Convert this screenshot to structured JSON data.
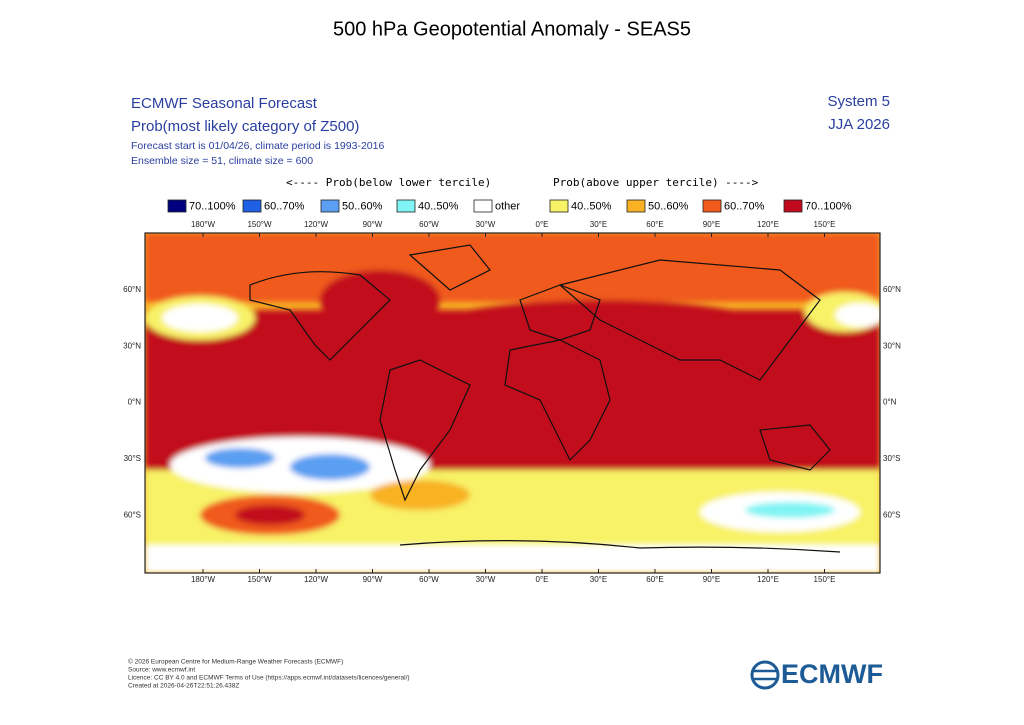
{
  "title": "500 hPa Geopotential Anomaly - SEAS5",
  "header": {
    "line1": "ECMWF Seasonal Forecast",
    "line2": "Prob(most likely category of Z500)",
    "line3": "Forecast start is 01/04/26, climate period is 1993-2016",
    "line4": "Ensemble size = 51, climate size = 600",
    "system": "System 5",
    "period": "JJA 2026"
  },
  "legend": {
    "below_caption": "<---- Prob(below lower tercile)",
    "above_caption": "Prob(above upper tercile) ---->",
    "items": [
      {
        "label": "70..100%",
        "color": "#00007f"
      },
      {
        "label": "60..70%",
        "color": "#1f5fe6"
      },
      {
        "label": "50..60%",
        "color": "#5a9ff2"
      },
      {
        "label": "40..50%",
        "color": "#80f4f4"
      },
      {
        "label": "other",
        "color": "#ffffff"
      },
      {
        "label": "40..50%",
        "color": "#f8f266"
      },
      {
        "label": "50..60%",
        "color": "#f8b224"
      },
      {
        "label": "60..70%",
        "color": "#f05a1a"
      },
      {
        "label": "70..100%",
        "color": "#c20a1e"
      }
    ]
  },
  "map": {
    "lon_labels": [
      "180°W",
      "150°W",
      "120°W",
      "90°W",
      "60°W",
      "30°W",
      "0°E",
      "30°E",
      "60°E",
      "90°E",
      "120°E",
      "150°E"
    ],
    "lat_labels": [
      "60°N",
      "30°N",
      "0°N",
      "30°S",
      "60°S"
    ]
  },
  "footer": {
    "line1": "© 2026 European Centre for Medium-Range Weather Forecasts (ECMWF)",
    "line2": "Source: www.ecmwf.int",
    "line3": "Licence: CC BY 4.0 and ECMWF Terms of Use (https://apps.ecmwf.int/datasets/licences/general/)",
    "line4": "Created at 2026-04-26T22:51:26.438Z",
    "logo": "ECMWF"
  }
}
